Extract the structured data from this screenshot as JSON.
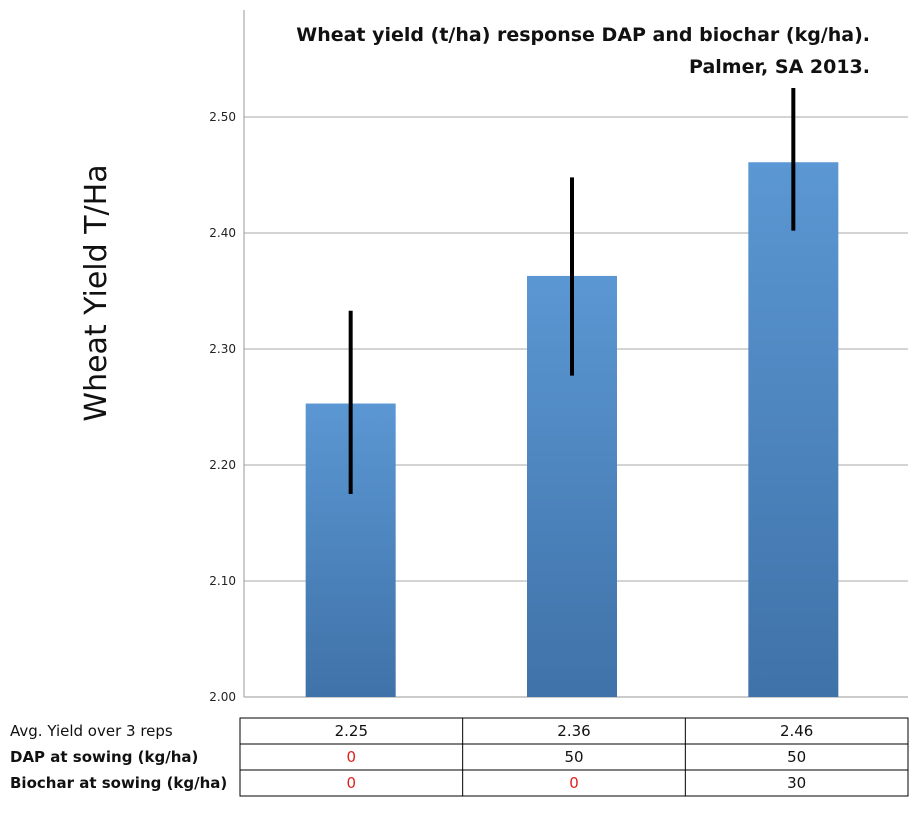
{
  "chart_data": {
    "type": "bar",
    "title": [
      "Wheat yield (t/ha) response DAP and biochar (kg/ha).",
      "Palmer, SA 2013."
    ],
    "ylabel": "Wheat Yield  T/Ha",
    "ylim": [
      2.0,
      2.55
    ],
    "yticks": [
      "2.00",
      "2.10",
      "2.20",
      "2.30",
      "2.40",
      "2.50"
    ],
    "ytick_values": [
      2.0,
      2.1,
      2.2,
      2.3,
      2.4,
      2.5
    ],
    "values": [
      2.253,
      2.363,
      2.461
    ],
    "error_low": [
      2.175,
      2.277,
      2.402
    ],
    "error_high": [
      2.333,
      2.448,
      2.525
    ],
    "grid": true,
    "bar_color_top": "#5b97d3",
    "bar_color_bottom": "#3f72a8",
    "table": {
      "rows": [
        {
          "label": "Avg. Yield over 3 reps",
          "bold": false,
          "cells": [
            "2.25",
            "2.36",
            "2.46"
          ]
        },
        {
          "label": "DAP at sowing (kg/ha)",
          "bold": true,
          "cells": [
            "0",
            "50",
            "50"
          ]
        },
        {
          "label": "Biochar at sowing (kg/ha)",
          "bold": true,
          "cells": [
            "0",
            "0",
            "30"
          ]
        }
      ],
      "highlight_color": "#e02020"
    }
  }
}
